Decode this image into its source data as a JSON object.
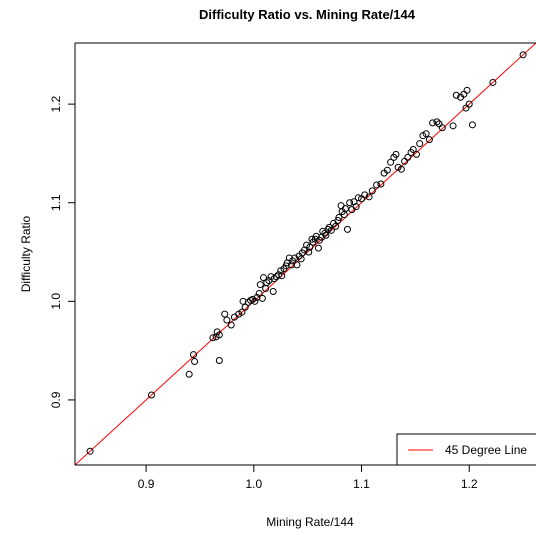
{
  "chart_data": {
    "type": "scatter",
    "title": "Difficulty Ratio vs. Mining Rate/144",
    "xlabel": "Mining Rate/144",
    "ylabel": "Difficulty Ratio",
    "xlim": [
      0.834,
      1.262
    ],
    "ylim": [
      0.834,
      1.262
    ],
    "x_ticks": [
      0.9,
      1.0,
      1.1,
      1.2
    ],
    "x_tick_labels": [
      "0.9",
      "1.0",
      "1.1",
      "1.2"
    ],
    "y_ticks": [
      0.9,
      1.0,
      1.1,
      1.2
    ],
    "y_tick_labels": [
      "0.9",
      "1.0",
      "1.1",
      "1.2"
    ],
    "grid": false,
    "legend": {
      "position": "bottom-right",
      "entries": [
        {
          "label": "45 Degree Line",
          "color": "#ff0000"
        }
      ]
    },
    "reference_line": {
      "slope": 1,
      "intercept": 0,
      "color": "#ff0000"
    },
    "points_color": "#000000",
    "points": [
      [
        0.848,
        0.848
      ],
      [
        0.905,
        0.905
      ],
      [
        0.94,
        0.926
      ],
      [
        0.944,
        0.946
      ],
      [
        0.945,
        0.939
      ],
      [
        0.962,
        0.963
      ],
      [
        0.965,
        0.964
      ],
      [
        0.966,
        0.969
      ],
      [
        0.968,
        0.94
      ],
      [
        0.968,
        0.966
      ],
      [
        0.973,
        0.987
      ],
      [
        0.975,
        0.981
      ],
      [
        0.979,
        0.976
      ],
      [
        0.982,
        0.984
      ],
      [
        0.986,
        0.987
      ],
      [
        0.989,
        0.989
      ],
      [
        0.99,
        1.0
      ],
      [
        0.992,
        0.994
      ],
      [
        0.995,
        0.999
      ],
      [
        0.997,
        1.001
      ],
      [
        0.999,
        1.002
      ],
      [
        1.001,
        1.0
      ],
      [
        1.003,
        1.004
      ],
      [
        1.005,
        1.008
      ],
      [
        1.006,
        1.017
      ],
      [
        1.008,
        1.003
      ],
      [
        1.009,
        1.024
      ],
      [
        1.011,
        1.013
      ],
      [
        1.012,
        1.019
      ],
      [
        1.014,
        1.021
      ],
      [
        1.016,
        1.025
      ],
      [
        1.018,
        1.01
      ],
      [
        1.019,
        1.023
      ],
      [
        1.021,
        1.025
      ],
      [
        1.023,
        1.027
      ],
      [
        1.025,
        1.031
      ],
      [
        1.026,
        1.026
      ],
      [
        1.028,
        1.033
      ],
      [
        1.03,
        1.036
      ],
      [
        1.031,
        1.039
      ],
      [
        1.033,
        1.044
      ],
      [
        1.035,
        1.037
      ],
      [
        1.036,
        1.041
      ],
      [
        1.038,
        1.044
      ],
      [
        1.04,
        1.037
      ],
      [
        1.042,
        1.046
      ],
      [
        1.044,
        1.043
      ],
      [
        1.045,
        1.049
      ],
      [
        1.047,
        1.052
      ],
      [
        1.049,
        1.057
      ],
      [
        1.051,
        1.05
      ],
      [
        1.052,
        1.055
      ],
      [
        1.054,
        1.063
      ],
      [
        1.055,
        1.06
      ],
      [
        1.057,
        1.063
      ],
      [
        1.058,
        1.066
      ],
      [
        1.06,
        1.054
      ],
      [
        1.061,
        1.062
      ],
      [
        1.063,
        1.065
      ],
      [
        1.064,
        1.071
      ],
      [
        1.066,
        1.069
      ],
      [
        1.067,
        1.067
      ],
      [
        1.069,
        1.073
      ],
      [
        1.07,
        1.075
      ],
      [
        1.072,
        1.072
      ],
      [
        1.074,
        1.079
      ],
      [
        1.076,
        1.076
      ],
      [
        1.078,
        1.082
      ],
      [
        1.079,
        1.085
      ],
      [
        1.081,
        1.097
      ],
      [
        1.082,
        1.091
      ],
      [
        1.084,
        1.088
      ],
      [
        1.085,
        1.094
      ],
      [
        1.087,
        1.073
      ],
      [
        1.089,
        1.1
      ],
      [
        1.091,
        1.093
      ],
      [
        1.093,
        1.101
      ],
      [
        1.095,
        1.096
      ],
      [
        1.097,
        1.105
      ],
      [
        1.1,
        1.104
      ],
      [
        1.103,
        1.108
      ],
      [
        1.107,
        1.106
      ],
      [
        1.11,
        1.112
      ],
      [
        1.114,
        1.118
      ],
      [
        1.118,
        1.119
      ],
      [
        1.121,
        1.13
      ],
      [
        1.124,
        1.133
      ],
      [
        1.127,
        1.141
      ],
      [
        1.13,
        1.146
      ],
      [
        1.132,
        1.149
      ],
      [
        1.134,
        1.136
      ],
      [
        1.137,
        1.134
      ],
      [
        1.14,
        1.142
      ],
      [
        1.143,
        1.146
      ],
      [
        1.146,
        1.151
      ],
      [
        1.148,
        1.154
      ],
      [
        1.151,
        1.149
      ],
      [
        1.154,
        1.16
      ],
      [
        1.157,
        1.168
      ],
      [
        1.16,
        1.17
      ],
      [
        1.163,
        1.164
      ],
      [
        1.166,
        1.181
      ],
      [
        1.17,
        1.182
      ],
      [
        1.172,
        1.18
      ],
      [
        1.175,
        1.176
      ],
      [
        1.185,
        1.178
      ],
      [
        1.188,
        1.209
      ],
      [
        1.192,
        1.207
      ],
      [
        1.195,
        1.21
      ],
      [
        1.197,
        1.196
      ],
      [
        1.198,
        1.214
      ],
      [
        1.2,
        1.2
      ],
      [
        1.203,
        1.179
      ],
      [
        1.222,
        1.222
      ],
      [
        1.25,
        1.25
      ]
    ]
  }
}
